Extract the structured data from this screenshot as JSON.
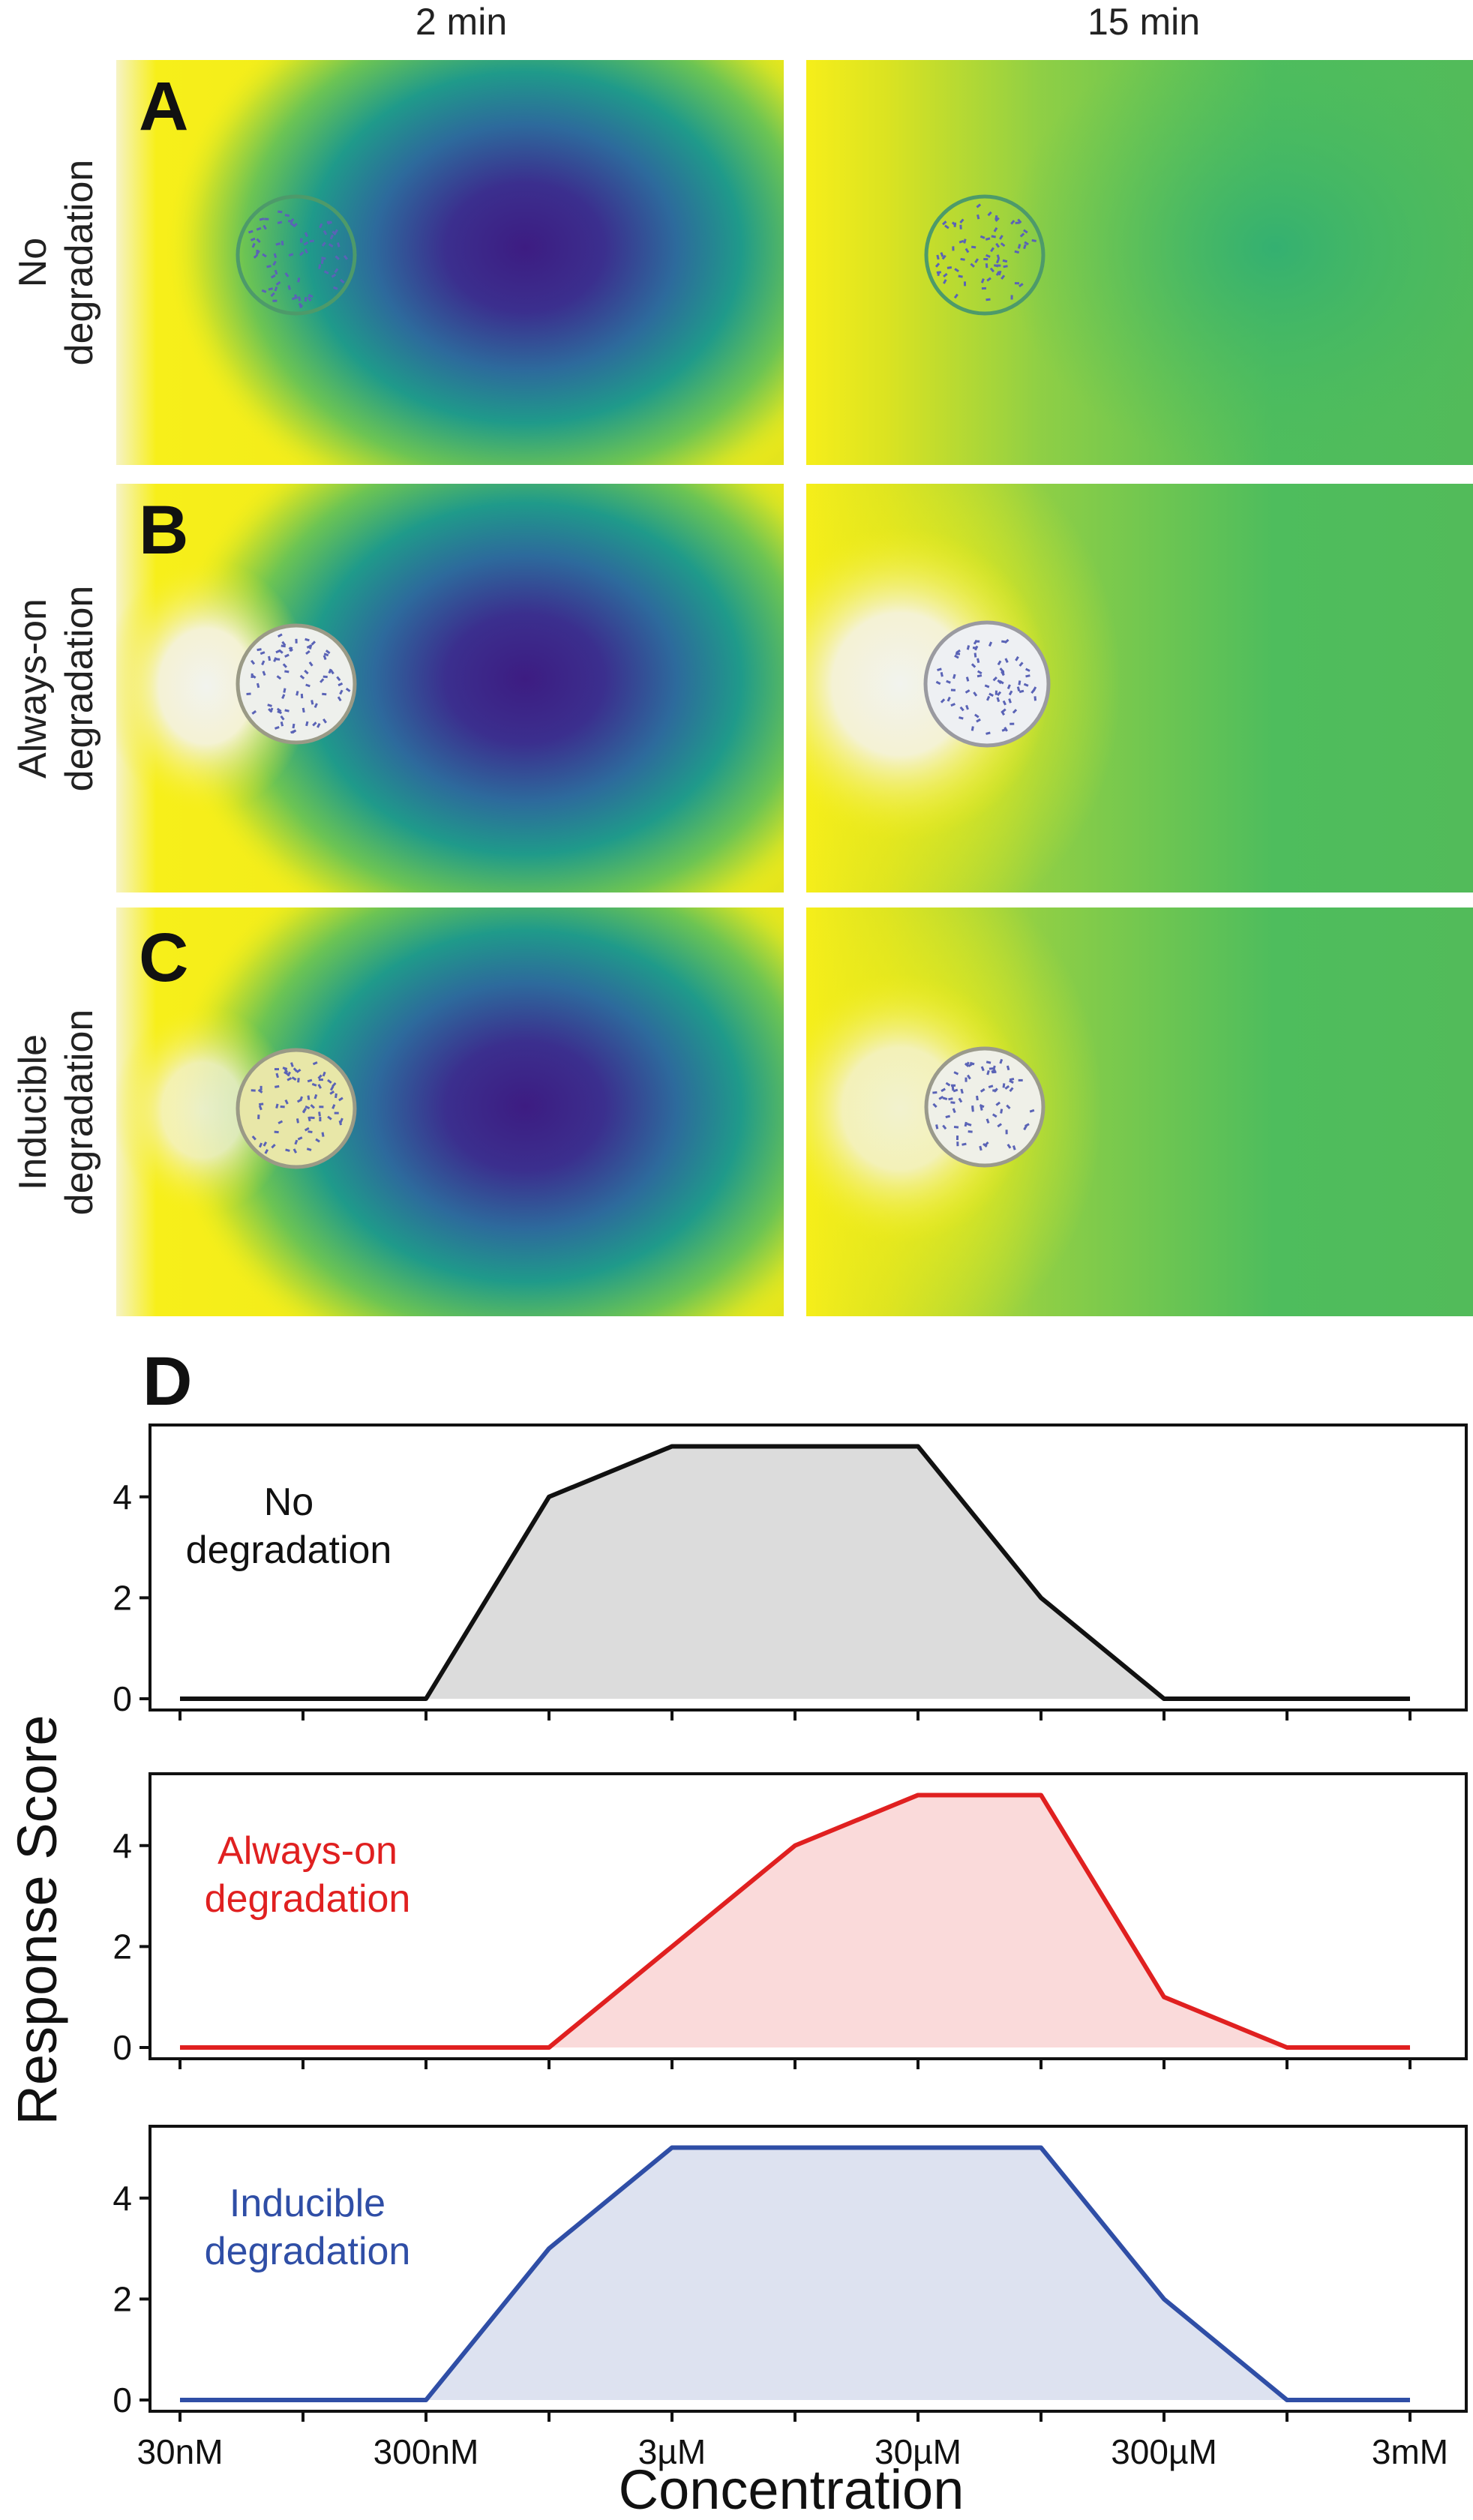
{
  "column_titles": [
    "2 min",
    "15 min"
  ],
  "row_labels": [
    [
      "No",
      "degradation"
    ],
    [
      "Always-on",
      "degradation"
    ],
    [
      "Inducible",
      "degradation"
    ]
  ],
  "panel_letters": [
    "A",
    "B",
    "C",
    "D"
  ],
  "colors": {
    "yellow": "#f4ee19",
    "green": "#4fbd5c",
    "teal": "#22908b",
    "purple": "#3f1f84",
    "series_black": "#111111",
    "series_red": "#e02020",
    "series_blue": "#2f4ea6",
    "fill_gray": "#dcdcdc",
    "fill_red": "#fadada",
    "fill_blue": "#dde2f0"
  },
  "chart_data": [
    {
      "type": "area",
      "name": "No degradation",
      "label": [
        "No",
        "degradation"
      ],
      "categories": [
        "30nM",
        "",
        "300nM",
        "",
        "3µM",
        "",
        "30µM",
        "",
        "300µM",
        "",
        "3mM"
      ],
      "values": [
        0,
        0,
        0,
        4,
        5,
        5,
        5,
        2,
        0,
        0,
        0
      ],
      "yticks": [
        0,
        2,
        4
      ],
      "ylim": [
        0,
        5.2
      ],
      "line_color": "#111111",
      "fill_color": "#dcdcdc"
    },
    {
      "type": "area",
      "name": "Always-on degradation",
      "label": [
        "Always-on",
        "degradation"
      ],
      "categories": [
        "30nM",
        "",
        "300nM",
        "",
        "3µM",
        "",
        "30µM",
        "",
        "300µM",
        "",
        "3mM"
      ],
      "values": [
        0,
        0,
        0,
        0,
        2,
        4,
        5,
        5,
        1,
        0,
        0
      ],
      "yticks": [
        0,
        2,
        4
      ],
      "ylim": [
        0,
        5.2
      ],
      "line_color": "#e02020",
      "fill_color": "#fadada"
    },
    {
      "type": "area",
      "name": "Inducible degradation",
      "label": [
        "Inducible",
        "degradation"
      ],
      "categories": [
        "30nM",
        "",
        "300nM",
        "",
        "3µM",
        "",
        "30µM",
        "",
        "300µM",
        "",
        "3mM"
      ],
      "values": [
        0,
        0,
        0,
        3,
        5,
        5,
        5,
        5,
        2,
        0,
        0
      ],
      "yticks": [
        0,
        2,
        4
      ],
      "ylim": [
        0,
        5.2
      ],
      "line_color": "#2f4ea6",
      "fill_color": "#dde2f0"
    }
  ],
  "axis": {
    "ylabel": "Response Score",
    "xlabel": "Concentration",
    "xtick_labels": [
      "30nM",
      "300nM",
      "3µM",
      "30µM",
      "300µM",
      "3mM"
    ]
  }
}
